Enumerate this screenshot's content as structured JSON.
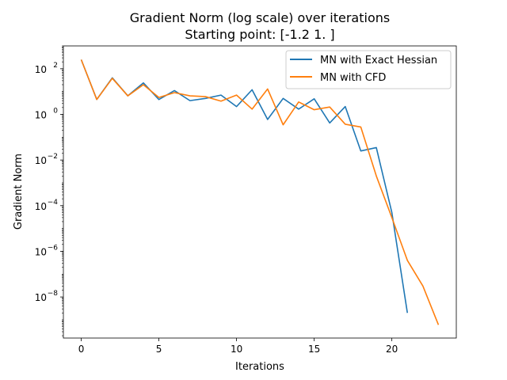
{
  "chart_data": {
    "type": "line",
    "title": "Gradient Norm (log scale) over iterations",
    "subtitle": "Starting point: [-1.2  1. ]",
    "xlabel": "Iterations",
    "ylabel": "Gradient Norm",
    "xlim": [
      -1.15,
      24.15
    ],
    "ylim_log10": [
      -9.8,
      3.0
    ],
    "yscale": "log",
    "grid": false,
    "legend_position": "top-right",
    "x_ticks": [
      0,
      5,
      10,
      15,
      20
    ],
    "y_ticks": [
      {
        "exp": 2,
        "label": "10",
        "sup": "2"
      },
      {
        "exp": 0,
        "label": "10",
        "sup": "0"
      },
      {
        "exp": -2,
        "label": "10",
        "sup": "−2"
      },
      {
        "exp": -4,
        "label": "10",
        "sup": "−4"
      },
      {
        "exp": -6,
        "label": "10",
        "sup": "−6"
      },
      {
        "exp": -8,
        "label": "10",
        "sup": "−8"
      }
    ],
    "series": [
      {
        "name": "MN with Exact Hessian",
        "color": "#1f77b4",
        "x": [
          0,
          1,
          2,
          3,
          4,
          5,
          6,
          7,
          8,
          9,
          10,
          11,
          12,
          13,
          14,
          15,
          16,
          17,
          18,
          19,
          20,
          21
        ],
        "y": [
          250,
          4.5,
          40,
          6.5,
          24,
          4.5,
          11,
          4,
          5,
          7,
          2.2,
          12,
          0.6,
          5,
          1.7,
          4.8,
          0.42,
          2.2,
          0.025,
          0.035,
          5e-05,
          2e-09
        ]
      },
      {
        "name": "MN with CFD",
        "color": "#ff7f0e",
        "x": [
          0,
          1,
          2,
          3,
          4,
          5,
          6,
          7,
          8,
          9,
          10,
          11,
          12,
          13,
          14,
          15,
          16,
          17,
          18,
          19,
          20,
          21,
          22,
          23
        ],
        "y": [
          250,
          4.5,
          38,
          6.5,
          20,
          5.5,
          9,
          6.5,
          6,
          3.8,
          7,
          1.7,
          13,
          0.35,
          3.5,
          1.6,
          2.1,
          0.37,
          0.28,
          0.002,
          3e-05,
          4e-07,
          3e-08,
          6e-10
        ]
      }
    ]
  }
}
